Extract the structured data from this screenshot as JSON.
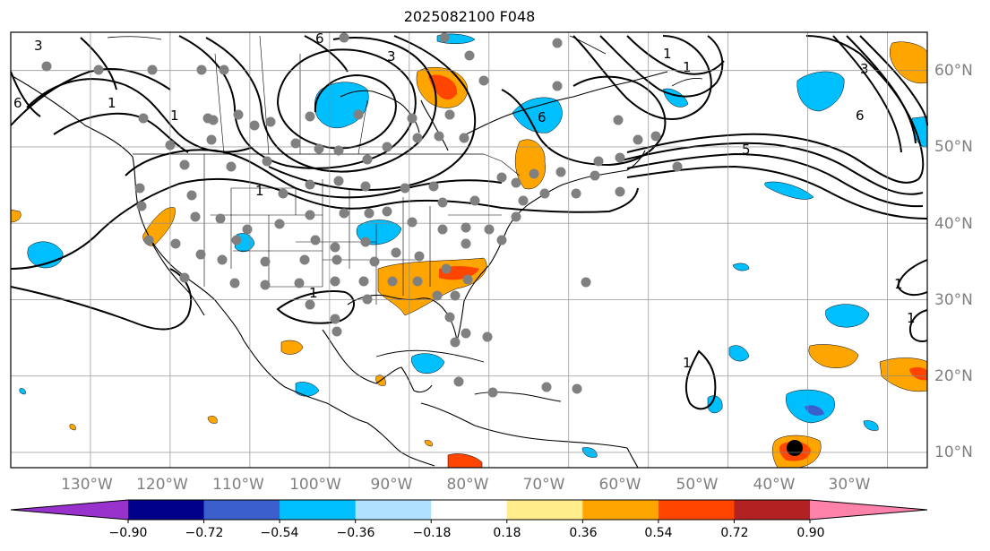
{
  "title": "2025082100 F048",
  "map": {
    "lon_range": [
      -140,
      -25
    ],
    "lat_range": [
      8,
      65
    ],
    "grid_lons": [
      -130,
      -120,
      -110,
      -100,
      -90,
      -80,
      -70,
      -60,
      -50,
      -40,
      -30
    ],
    "grid_lats": [
      10,
      20,
      30,
      40,
      50,
      60
    ],
    "lon_labels": [
      "130°W",
      "120°W",
      "110°W",
      "100°W",
      "90°W",
      "80°W",
      "70°W",
      "60°W",
      "50°W",
      "40°W",
      "30°W"
    ],
    "lat_labels": [
      "10°N",
      "20°N",
      "30°N",
      "40°N",
      "50°N",
      "60°N"
    ],
    "contour_labels": [
      "3",
      "1",
      "1",
      "1",
      "6",
      "3",
      "1",
      "6",
      "1",
      "1",
      "5",
      "6",
      "3",
      "1",
      "1",
      "1",
      "6"
    ]
  },
  "colorbar": {
    "ticks": [
      "−0.90",
      "−0.72",
      "−0.54",
      "−0.36",
      "−0.18",
      "0.18",
      "0.36",
      "0.54",
      "0.72",
      "0.90"
    ],
    "colors": [
      "#9932cc",
      "#00008b",
      "#3a5fcd",
      "#00bfff",
      "#b0e2ff",
      "#ffffff",
      "#ffec8b",
      "#ffa500",
      "#ff4500",
      "#b22222",
      "#ff82ab"
    ]
  }
}
